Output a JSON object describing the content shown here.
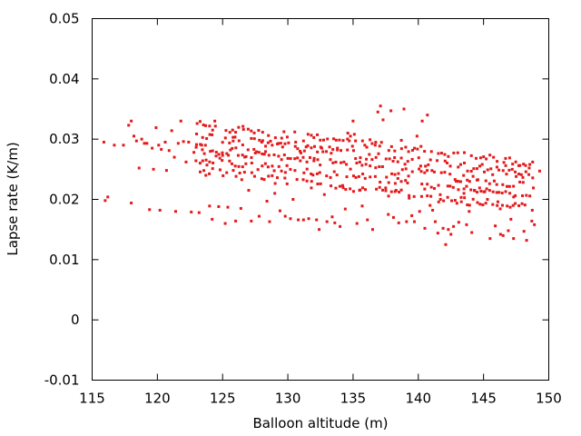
{
  "chart_data": {
    "type": "scatter",
    "xlabel": "Balloon altitude (m)",
    "ylabel": "Lapse rate (K/m)",
    "xlim": [
      115,
      150
    ],
    "ylim": [
      -0.01,
      0.05
    ],
    "x_ticks": [
      115,
      120,
      125,
      130,
      135,
      140,
      145,
      150
    ],
    "y_ticks": [
      -0.01,
      0,
      0.01,
      0.02,
      0.03,
      0.04,
      0.05
    ],
    "x_tick_labels": [
      "115",
      "120",
      "125",
      "130",
      "135",
      "140",
      "145",
      "150"
    ],
    "y_tick_labels": [
      "-0.01",
      "0",
      "0.01",
      "0.02",
      "0.03",
      "0.04",
      "0.05"
    ],
    "grid": false,
    "legend": "none",
    "marker_color": "#e41a1c",
    "series": [
      {
        "points": [
          [
            115.9,
            0.0295
          ],
          [
            116.0,
            0.0198
          ],
          [
            116.2,
            0.0204
          ],
          [
            116.7,
            0.029
          ],
          [
            117.4,
            0.029
          ],
          [
            117.8,
            0.0323
          ],
          [
            118.0,
            0.033
          ],
          [
            118.0,
            0.0194
          ],
          [
            118.2,
            0.0305
          ],
          [
            118.4,
            0.0297
          ],
          [
            118.6,
            0.0252
          ],
          [
            118.8,
            0.03
          ],
          [
            119.0,
            0.0293
          ],
          [
            119.2,
            0.0293
          ],
          [
            119.4,
            0.0183
          ],
          [
            119.6,
            0.0285
          ],
          [
            119.7,
            0.025
          ],
          [
            119.9,
            0.0319
          ],
          [
            120.1,
            0.029
          ],
          [
            120.2,
            0.0182
          ],
          [
            120.3,
            0.0283
          ],
          [
            120.6,
            0.0295
          ],
          [
            120.7,
            0.0248
          ],
          [
            120.9,
            0.0281
          ],
          [
            121.1,
            0.0314
          ],
          [
            121.3,
            0.027
          ],
          [
            121.4,
            0.018
          ],
          [
            121.6,
            0.0293
          ],
          [
            121.8,
            0.033
          ],
          [
            122.0,
            0.0296
          ],
          [
            122.2,
            0.0262
          ],
          [
            122.4,
            0.0295
          ],
          [
            122.6,
            0.0179
          ],
          [
            122.8,
            0.0278
          ],
          [
            123.0,
            0.0291
          ],
          [
            123.2,
            0.0178
          ],
          [
            123.4,
            0.029
          ],
          [
            123.6,
            0.0276
          ],
          [
            123.8,
            0.0257
          ],
          [
            124.0,
            0.0189
          ],
          [
            124.2,
            0.0167
          ],
          [
            124.4,
            0.033
          ],
          [
            124.5,
            0.0272
          ],
          [
            124.7,
            0.0188
          ],
          [
            125.0,
            0.0273
          ],
          [
            125.2,
            0.016
          ],
          [
            125.4,
            0.0187
          ],
          [
            125.6,
            0.0282
          ],
          [
            125.8,
            0.0303
          ],
          [
            126.0,
            0.0164
          ],
          [
            126.2,
            0.0273
          ],
          [
            126.4,
            0.0185
          ],
          [
            126.6,
            0.0316
          ],
          [
            126.8,
            0.0271
          ],
          [
            127.0,
            0.0215
          ],
          [
            127.2,
            0.0164
          ],
          [
            127.4,
            0.0283
          ],
          [
            127.6,
            0.0279
          ],
          [
            127.8,
            0.0172
          ],
          [
            128.0,
            0.0295
          ],
          [
            128.2,
            0.0275
          ],
          [
            128.4,
            0.0197
          ],
          [
            128.6,
            0.0163
          ],
          [
            128.8,
            0.029
          ],
          [
            129.0,
            0.021
          ],
          [
            129.2,
            0.0292
          ],
          [
            129.4,
            0.0181
          ],
          [
            129.6,
            0.0287
          ],
          [
            129.8,
            0.0172
          ],
          [
            130.0,
            0.0268
          ],
          [
            130.2,
            0.0168
          ],
          [
            130.4,
            0.02
          ],
          [
            130.6,
            0.0295
          ],
          [
            130.8,
            0.0166
          ],
          [
            131.0,
            0.0277
          ],
          [
            131.2,
            0.0166
          ],
          [
            131.4,
            0.0287
          ],
          [
            131.6,
            0.0168
          ],
          [
            131.8,
            0.0219
          ],
          [
            132.0,
            0.0264
          ],
          [
            132.2,
            0.0166
          ],
          [
            132.4,
            0.015
          ],
          [
            132.6,
            0.0285
          ],
          [
            132.8,
            0.0208
          ],
          [
            133.0,
            0.0163
          ],
          [
            133.2,
            0.0287
          ],
          [
            133.4,
            0.0171
          ],
          [
            133.6,
            0.0161
          ],
          [
            133.8,
            0.0282
          ],
          [
            134.0,
            0.0155
          ],
          [
            134.2,
            0.0223
          ],
          [
            134.4,
            0.0184
          ],
          [
            134.6,
            0.031
          ],
          [
            134.8,
            0.0305
          ],
          [
            135.0,
            0.033
          ],
          [
            135.1,
            0.0308
          ],
          [
            135.3,
            0.016
          ],
          [
            135.5,
            0.0215
          ],
          [
            135.7,
            0.0189
          ],
          [
            135.9,
            0.029
          ],
          [
            136.1,
            0.0166
          ],
          [
            136.3,
            0.0299
          ],
          [
            136.5,
            0.015
          ],
          [
            136.7,
            0.029
          ],
          [
            136.9,
            0.0345
          ],
          [
            137.1,
            0.0355
          ],
          [
            137.3,
            0.0332
          ],
          [
            137.5,
            0.0219
          ],
          [
            137.7,
            0.0175
          ],
          [
            137.9,
            0.0347
          ],
          [
            138.1,
            0.017
          ],
          [
            138.3,
            0.0215
          ],
          [
            138.5,
            0.0161
          ],
          [
            138.7,
            0.0298
          ],
          [
            138.9,
            0.035
          ],
          [
            139.1,
            0.0163
          ],
          [
            139.3,
            0.0202
          ],
          [
            139.5,
            0.0173
          ],
          [
            139.7,
            0.0163
          ],
          [
            139.9,
            0.0305
          ],
          [
            140.1,
            0.018
          ],
          [
            140.3,
            0.033
          ],
          [
            140.5,
            0.0152
          ],
          [
            140.7,
            0.034
          ],
          [
            140.9,
            0.019
          ],
          [
            141.1,
            0.0182
          ],
          [
            141.3,
            0.0163
          ],
          [
            141.5,
            0.0144
          ],
          [
            141.7,
            0.02
          ],
          [
            141.9,
            0.0152
          ],
          [
            142.1,
            0.0125
          ],
          [
            142.3,
            0.015
          ],
          [
            142.5,
            0.0142
          ],
          [
            142.7,
            0.0155
          ],
          [
            142.9,
            0.023
          ],
          [
            143.1,
            0.0162
          ],
          [
            143.3,
            0.0196
          ],
          [
            143.5,
            0.021
          ],
          [
            143.7,
            0.0158
          ],
          [
            143.9,
            0.018
          ],
          [
            144.1,
            0.0145
          ],
          [
            144.3,
            0.0215
          ],
          [
            144.5,
            0.0232
          ],
          [
            144.7,
            0.0219
          ],
          [
            144.9,
            0.0258
          ],
          [
            145.1,
            0.0213
          ],
          [
            145.3,
            0.02
          ],
          [
            145.5,
            0.0135
          ],
          [
            145.7,
            0.0241
          ],
          [
            145.9,
            0.0156
          ],
          [
            146.1,
            0.0196
          ],
          [
            146.3,
            0.0142
          ],
          [
            146.5,
            0.014
          ],
          [
            146.7,
            0.0256
          ],
          [
            146.9,
            0.0148
          ],
          [
            147.1,
            0.0167
          ],
          [
            147.3,
            0.0135
          ],
          [
            147.5,
            0.0238
          ],
          [
            147.7,
            0.0256
          ],
          [
            147.9,
            0.0241
          ],
          [
            148.1,
            0.0147
          ],
          [
            148.3,
            0.0132
          ],
          [
            148.5,
            0.0252
          ],
          [
            148.7,
            0.0164
          ],
          [
            148.9,
            0.0158
          ],
          [
            149.3,
            0.0247
          ]
        ],
        "band": {
          "x_range": [
            123.0,
            148.8
          ],
          "x_step": 0.25,
          "centre_at_start": 0.0286,
          "centre_at_end": 0.0222,
          "half_width": 0.0038,
          "rows": 5
        }
      }
    ]
  }
}
